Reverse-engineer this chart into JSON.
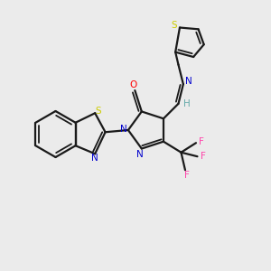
{
  "bg_color": "#ebebeb",
  "bond_color": "#1a1a1a",
  "colors": {
    "N": "#0000cc",
    "O": "#ff0000",
    "S_btz": "#cccc00",
    "S_thio": "#cccc00",
    "F": "#ff44aa",
    "H": "#66aaaa",
    "C": "#1a1a1a"
  },
  "lw": 1.6,
  "lw2": 1.3
}
